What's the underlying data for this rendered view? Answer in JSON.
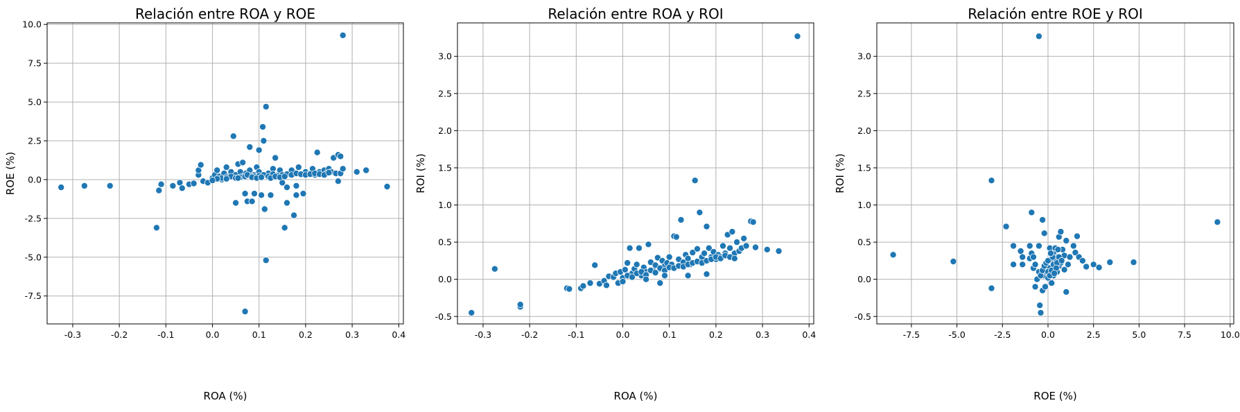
{
  "chart_data": [
    {
      "type": "scatter",
      "title": "Relación entre ROA y ROE",
      "xlabel": "ROA (%)",
      "ylabel": "ROE (%)",
      "xlim": [
        -0.355,
        0.41
      ],
      "ylim": [
        -9.3,
        10.1
      ],
      "xticks": [
        -0.3,
        -0.2,
        -0.1,
        0.0,
        0.1,
        0.2,
        0.3,
        0.4
      ],
      "xtick_labels": [
        "-0.3",
        "-0.2",
        "-0.1",
        "0.0",
        "0.1",
        "0.2",
        "0.3",
        "0.4"
      ],
      "yticks": [
        -7.5,
        -5.0,
        -2.5,
        0.0,
        2.5,
        5.0,
        7.5,
        10.0
      ],
      "ytick_labels": [
        "-7.5",
        "-5.0",
        "-2.5",
        "0.0",
        "2.5",
        "5.0",
        "7.5",
        "10.0"
      ],
      "grid": true,
      "color": "#1f77b4",
      "points": [
        [
          -0.325,
          -0.5
        ],
        [
          -0.275,
          -0.4
        ],
        [
          -0.22,
          -0.4
        ],
        [
          -0.12,
          -3.1
        ],
        [
          -0.115,
          -0.7
        ],
        [
          -0.11,
          -0.3
        ],
        [
          -0.085,
          -0.4
        ],
        [
          -0.07,
          -0.2
        ],
        [
          -0.065,
          -0.55
        ],
        [
          -0.05,
          -0.3
        ],
        [
          -0.04,
          -0.25
        ],
        [
          -0.03,
          0.3
        ],
        [
          -0.03,
          0.6
        ],
        [
          -0.025,
          0.95
        ],
        [
          -0.02,
          -0.1
        ],
        [
          -0.01,
          -0.2
        ],
        [
          0.0,
          0.1
        ],
        [
          0.005,
          0.3
        ],
        [
          0.01,
          0.6
        ],
        [
          0.015,
          0.2
        ],
        [
          0.02,
          0.0
        ],
        [
          0.025,
          0.4
        ],
        [
          0.03,
          0.8
        ],
        [
          0.035,
          0.2
        ],
        [
          0.04,
          0.5
        ],
        [
          0.045,
          2.8
        ],
        [
          0.05,
          -1.5
        ],
        [
          0.05,
          0.3
        ],
        [
          0.055,
          1.0
        ],
        [
          0.06,
          0.5
        ],
        [
          0.065,
          0.2
        ],
        [
          0.065,
          1.1
        ],
        [
          0.07,
          -0.9
        ],
        [
          0.07,
          -8.5
        ],
        [
          0.072,
          0.4
        ],
        [
          0.075,
          -1.4
        ],
        [
          0.08,
          2.1
        ],
        [
          0.08,
          0.6
        ],
        [
          0.085,
          -1.4
        ],
        [
          0.09,
          0.3
        ],
        [
          0.09,
          -0.9
        ],
        [
          0.095,
          0.8
        ],
        [
          0.1,
          1.9
        ],
        [
          0.1,
          0.5
        ],
        [
          0.105,
          -1.0
        ],
        [
          0.108,
          3.4
        ],
        [
          0.11,
          2.5
        ],
        [
          0.112,
          -1.9
        ],
        [
          0.115,
          -5.2
        ],
        [
          0.115,
          4.7
        ],
        [
          0.12,
          0.4
        ],
        [
          0.125,
          -1.0
        ],
        [
          0.13,
          0.7
        ],
        [
          0.135,
          1.4
        ],
        [
          0.14,
          0.3
        ],
        [
          0.145,
          0.6
        ],
        [
          0.15,
          -0.2
        ],
        [
          0.155,
          -3.1
        ],
        [
          0.16,
          -0.5
        ],
        [
          0.16,
          -1.5
        ],
        [
          0.165,
          0.4
        ],
        [
          0.17,
          0.6
        ],
        [
          0.175,
          -2.3
        ],
        [
          0.18,
          -0.4
        ],
        [
          0.18,
          -1.0
        ],
        [
          0.185,
          0.8
        ],
        [
          0.19,
          0.3
        ],
        [
          0.195,
          -0.9
        ],
        [
          0.2,
          0.5
        ],
        [
          0.21,
          0.4
        ],
        [
          0.215,
          0.7
        ],
        [
          0.22,
          0.3
        ],
        [
          0.225,
          1.75
        ],
        [
          0.23,
          0.5
        ],
        [
          0.24,
          0.6
        ],
        [
          0.245,
          0.4
        ],
        [
          0.25,
          0.7
        ],
        [
          0.255,
          0.5
        ],
        [
          0.26,
          1.4
        ],
        [
          0.265,
          0.4
        ],
        [
          0.27,
          1.6
        ],
        [
          0.27,
          -0.1
        ],
        [
          0.275,
          1.5
        ],
        [
          0.275,
          0.4
        ],
        [
          0.28,
          9.3
        ],
        [
          0.28,
          0.7
        ],
        [
          0.31,
          0.5
        ],
        [
          0.33,
          0.6
        ],
        [
          0.375,
          -0.45
        ],
        [
          0.02,
          0.1
        ],
        [
          0.03,
          0.15
        ],
        [
          0.04,
          0.2
        ],
        [
          0.05,
          0.1
        ],
        [
          0.06,
          0.15
        ],
        [
          0.07,
          0.2
        ],
        [
          0.08,
          0.25
        ],
        [
          0.09,
          0.2
        ],
        [
          0.1,
          0.25
        ],
        [
          0.11,
          0.3
        ],
        [
          0.12,
          0.2
        ],
        [
          0.13,
          0.35
        ],
        [
          0.14,
          0.25
        ],
        [
          0.15,
          0.3
        ],
        [
          0.16,
          0.35
        ],
        [
          0.17,
          0.3
        ],
        [
          0.18,
          0.4
        ],
        [
          0.19,
          0.35
        ],
        [
          0.2,
          0.3
        ],
        [
          0.21,
          0.35
        ],
        [
          0.22,
          0.4
        ],
        [
          0.23,
          0.35
        ],
        [
          0.24,
          0.3
        ],
        [
          0.25,
          0.45
        ],
        [
          0.01,
          0.05
        ],
        [
          0.0,
          -0.05
        ],
        [
          0.03,
          0.05
        ],
        [
          0.055,
          0.1
        ],
        [
          0.075,
          0.3
        ],
        [
          0.085,
          0.15
        ],
        [
          0.095,
          0.1
        ],
        [
          0.105,
          0.15
        ],
        [
          0.125,
          0.1
        ],
        [
          0.135,
          0.2
        ],
        [
          0.145,
          0.15
        ],
        [
          0.155,
          0.2
        ]
      ]
    },
    {
      "type": "scatter",
      "title": "Relación entre ROA y ROI",
      "xlabel": "ROA (%)",
      "ylabel": "ROI (%)",
      "xlim": [
        -0.355,
        0.41
      ],
      "ylim": [
        -0.6,
        3.45
      ],
      "xticks": [
        -0.3,
        -0.2,
        -0.1,
        0.0,
        0.1,
        0.2,
        0.3,
        0.4
      ],
      "xtick_labels": [
        "-0.3",
        "-0.2",
        "-0.1",
        "0.0",
        "0.1",
        "0.2",
        "0.3",
        "0.4"
      ],
      "yticks": [
        -0.5,
        0.0,
        0.5,
        1.0,
        1.5,
        2.0,
        2.5,
        3.0
      ],
      "ytick_labels": [
        "-0.5",
        "0.0",
        "0.5",
        "1.0",
        "1.5",
        "2.0",
        "2.5",
        "3.0"
      ],
      "grid": true,
      "color": "#1f77b4",
      "points": [
        [
          -0.325,
          -0.45
        ],
        [
          -0.275,
          0.14
        ],
        [
          -0.22,
          -0.37
        ],
        [
          -0.22,
          -0.34
        ],
        [
          -0.12,
          -0.12
        ],
        [
          -0.115,
          -0.13
        ],
        [
          -0.09,
          -0.12
        ],
        [
          -0.085,
          -0.09
        ],
        [
          -0.07,
          -0.05
        ],
        [
          -0.06,
          0.19
        ],
        [
          -0.05,
          -0.06
        ],
        [
          -0.04,
          -0.02
        ],
        [
          -0.035,
          -0.08
        ],
        [
          -0.03,
          0.04
        ],
        [
          -0.02,
          0.03
        ],
        [
          -0.015,
          0.08
        ],
        [
          -0.01,
          -0.05
        ],
        [
          -0.005,
          0.1
        ],
        [
          0.0,
          0.02
        ],
        [
          0.005,
          0.13
        ],
        [
          0.01,
          0.22
        ],
        [
          0.015,
          0.42
        ],
        [
          0.02,
          0.08
        ],
        [
          0.025,
          0.14
        ],
        [
          0.03,
          0.2
        ],
        [
          0.035,
          0.42
        ],
        [
          0.04,
          0.05
        ],
        [
          0.045,
          0.16
        ],
        [
          0.05,
          0.1
        ],
        [
          0.055,
          0.47
        ],
        [
          0.06,
          0.23
        ],
        [
          0.065,
          0.12
        ],
        [
          0.07,
          0.19
        ],
        [
          0.075,
          0.29
        ],
        [
          0.08,
          0.14
        ],
        [
          0.085,
          0.25
        ],
        [
          0.09,
          0.18
        ],
        [
          0.095,
          0.22
        ],
        [
          0.1,
          0.3
        ],
        [
          0.105,
          0.2
        ],
        [
          0.11,
          0.58
        ],
        [
          0.115,
          0.57
        ],
        [
          0.12,
          0.27
        ],
        [
          0.125,
          0.8
        ],
        [
          0.13,
          0.23
        ],
        [
          0.135,
          0.33
        ],
        [
          0.14,
          0.28
        ],
        [
          0.145,
          0.2
        ],
        [
          0.15,
          0.36
        ],
        [
          0.155,
          1.33
        ],
        [
          0.16,
          0.41
        ],
        [
          0.165,
          0.9
        ],
        [
          0.17,
          0.3
        ],
        [
          0.175,
          0.35
        ],
        [
          0.18,
          0.71
        ],
        [
          0.185,
          0.42
        ],
        [
          0.19,
          0.3
        ],
        [
          0.195,
          0.37
        ],
        [
          0.2,
          0.27
        ],
        [
          0.205,
          0.33
        ],
        [
          0.21,
          0.3
        ],
        [
          0.215,
          0.45
        ],
        [
          0.22,
          0.35
        ],
        [
          0.225,
          0.6
        ],
        [
          0.23,
          0.42
        ],
        [
          0.235,
          0.64
        ],
        [
          0.24,
          0.35
        ],
        [
          0.245,
          0.5
        ],
        [
          0.25,
          0.38
        ],
        [
          0.255,
          0.42
        ],
        [
          0.26,
          0.55
        ],
        [
          0.265,
          0.45
        ],
        [
          0.275,
          0.78
        ],
        [
          0.28,
          0.77
        ],
        [
          0.285,
          0.43
        ],
        [
          0.31,
          0.4
        ],
        [
          0.335,
          0.38
        ],
        [
          0.375,
          3.27
        ],
        [
          0.01,
          0.05
        ],
        [
          0.02,
          0.03
        ],
        [
          0.03,
          0.08
        ],
        [
          0.04,
          0.1
        ],
        [
          0.05,
          0.06
        ],
        [
          0.06,
          0.12
        ],
        [
          0.07,
          0.09
        ],
        [
          0.08,
          0.15
        ],
        [
          0.09,
          0.12
        ],
        [
          0.1,
          0.16
        ],
        [
          0.11,
          0.15
        ],
        [
          0.12,
          0.18
        ],
        [
          0.13,
          0.17
        ],
        [
          0.14,
          0.2
        ],
        [
          0.15,
          0.22
        ],
        [
          0.16,
          0.24
        ],
        [
          0.17,
          0.22
        ],
        [
          0.18,
          0.25
        ],
        [
          0.19,
          0.27
        ],
        [
          0.2,
          0.3
        ],
        [
          0.21,
          0.28
        ],
        [
          0.22,
          0.32
        ],
        [
          0.23,
          0.3
        ],
        [
          0.24,
          0.28
        ],
        [
          0.0,
          -0.03
        ],
        [
          0.08,
          -0.05
        ],
        [
          0.09,
          0.05
        ],
        [
          0.05,
          0.0
        ],
        [
          0.14,
          0.05
        ],
        [
          0.18,
          0.07
        ]
      ]
    },
    {
      "type": "scatter",
      "title": "Relación entre ROE y ROI",
      "xlabel": "ROE (%)",
      "ylabel": "ROI (%)",
      "xlim": [
        -9.4,
        10.2
      ],
      "ylim": [
        -0.6,
        3.45
      ],
      "xticks": [
        -7.5,
        -5.0,
        -2.5,
        0.0,
        2.5,
        5.0,
        7.5,
        10.0
      ],
      "xtick_labels": [
        "-7.5",
        "-5.0",
        "-2.5",
        "0.0",
        "2.5",
        "5.0",
        "7.5",
        "10.0"
      ],
      "yticks": [
        -0.5,
        0.0,
        0.5,
        1.0,
        1.5,
        2.0,
        2.5,
        3.0
      ],
      "ytick_labels": [
        "-0.5",
        "0.0",
        "0.5",
        "1.0",
        "1.5",
        "2.0",
        "2.5",
        "3.0"
      ],
      "grid": true,
      "color": "#1f77b4",
      "points": [
        [
          -8.5,
          0.33
        ],
        [
          -5.2,
          0.24
        ],
        [
          -3.1,
          1.33
        ],
        [
          -3.1,
          -0.12
        ],
        [
          -2.3,
          0.71
        ],
        [
          -1.9,
          0.45
        ],
        [
          -1.9,
          0.2
        ],
        [
          -1.5,
          0.38
        ],
        [
          -1.4,
          0.3
        ],
        [
          -1.4,
          0.2
        ],
        [
          -1.0,
          0.45
        ],
        [
          -1.0,
          0.28
        ],
        [
          -0.9,
          0.9
        ],
        [
          -0.9,
          0.35
        ],
        [
          -0.8,
          0.15
        ],
        [
          -0.7,
          -0.1
        ],
        [
          -0.5,
          3.27
        ],
        [
          -0.5,
          0.45
        ],
        [
          -0.45,
          -0.35
        ],
        [
          -0.4,
          -0.45
        ],
        [
          -0.3,
          0.8
        ],
        [
          -0.3,
          -0.15
        ],
        [
          -0.2,
          0.62
        ],
        [
          -0.2,
          0.05
        ],
        [
          -0.1,
          0.1
        ],
        [
          0.0,
          0.02
        ],
        [
          0.1,
          0.15
        ],
        [
          0.1,
          0.42
        ],
        [
          0.2,
          0.25
        ],
        [
          0.3,
          0.35
        ],
        [
          0.3,
          0.05
        ],
        [
          0.4,
          0.2
        ],
        [
          0.4,
          0.42
        ],
        [
          0.5,
          0.1
        ],
        [
          0.5,
          0.3
        ],
        [
          0.6,
          0.18
        ],
        [
          0.6,
          0.57
        ],
        [
          0.7,
          0.64
        ],
        [
          0.7,
          0.22
        ],
        [
          0.8,
          0.4
        ],
        [
          0.9,
          0.13
        ],
        [
          0.9,
          0.32
        ],
        [
          1.0,
          -0.17
        ],
        [
          1.0,
          0.52
        ],
        [
          1.1,
          0.2
        ],
        [
          1.2,
          0.3
        ],
        [
          1.4,
          0.45
        ],
        [
          1.5,
          0.36
        ],
        [
          1.6,
          0.58
        ],
        [
          1.7,
          0.3
        ],
        [
          1.9,
          0.25
        ],
        [
          2.1,
          0.17
        ],
        [
          2.5,
          0.2
        ],
        [
          2.8,
          0.16
        ],
        [
          3.4,
          0.23
        ],
        [
          4.7,
          0.23
        ],
        [
          9.3,
          0.77
        ],
        [
          -0.6,
          0.0
        ],
        [
          -0.5,
          0.1
        ],
        [
          -0.4,
          0.05
        ],
        [
          -0.3,
          0.12
        ],
        [
          -0.2,
          0.18
        ],
        [
          -0.1,
          0.22
        ],
        [
          0.0,
          0.1
        ],
        [
          0.1,
          0.05
        ],
        [
          0.2,
          0.12
        ],
        [
          0.3,
          0.2
        ],
        [
          0.4,
          0.28
        ],
        [
          0.5,
          0.22
        ],
        [
          0.6,
          0.3
        ],
        [
          0.2,
          -0.05
        ],
        [
          -0.7,
          0.2
        ],
        [
          -0.8,
          0.3
        ],
        [
          0.0,
          0.25
        ],
        [
          0.25,
          0.3
        ],
        [
          0.45,
          0.15
        ],
        [
          0.55,
          0.4
        ],
        [
          0.75,
          0.25
        ],
        [
          -0.15,
          -0.1
        ],
        [
          0.15,
          0.35
        ],
        [
          0.35,
          0.08
        ]
      ]
    }
  ]
}
